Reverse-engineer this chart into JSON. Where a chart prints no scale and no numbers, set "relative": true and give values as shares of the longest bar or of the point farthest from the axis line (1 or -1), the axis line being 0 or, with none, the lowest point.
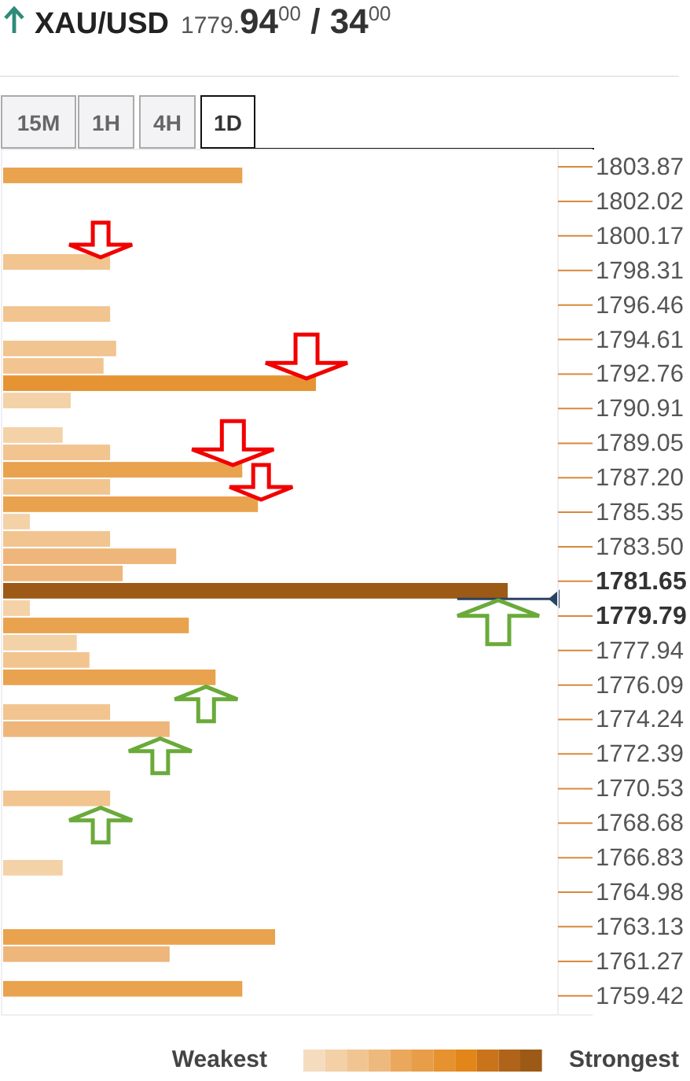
{
  "chart_data": {
    "type": "bar",
    "orientation": "horizontal",
    "relative": true,
    "title": "XAU/USD",
    "subtitle": "1779.94$^{00}$ / 34$^{00}$",
    "annotations": [
      "15M",
      "1H",
      "4H",
      "1D",
      "Weakest",
      "Strongest"
    ],
    "x": [
      1803.41,
      1798.77,
      1795.98,
      1794.13,
      1793.2,
      1792.27,
      1791.34,
      1789.49,
      1788.56,
      1787.63,
      1786.71,
      1785.78,
      1784.85,
      1783.92,
      1782.99,
      1782.07,
      1781.14,
      1780.21,
      1779.28,
      1778.36,
      1777.43,
      1776.5,
      1774.64,
      1773.72,
      1770.01,
      1766.29,
      1762.58,
      1761.66,
      1759.8
    ],
    "values": [
      0.474,
      0.212,
      0.212,
      0.224,
      0.199,
      0.62,
      0.134,
      0.118,
      0.212,
      0.474,
      0.212,
      0.505,
      0.053,
      0.212,
      0.343,
      0.237,
      1,
      0.053,
      0.368,
      0.146,
      0.171,
      0.421,
      0.212,
      0.33,
      0.212,
      0.118,
      0.539,
      0.33,
      0.474
    ],
    "colors": [
      "#e9a24e",
      "#f1c490",
      "#f1c490",
      "#f1c490",
      "#f1c490",
      "#e69433",
      "#f4d2a8",
      "#f4d2a8",
      "#f1c490",
      "#e9a24e",
      "#f1c490",
      "#e9a24e",
      "#f4d2a8",
      "#f1c490",
      "#eeb67a",
      "#eeb67a",
      "#9c5a16",
      "#f4d2a8",
      "#e9a24e",
      "#f4d2a8",
      "#f1c490",
      "#e9a24e",
      "#f1c490",
      "#eeb67a",
      "#f1c490",
      "#f4d2a8",
      "#e9a24e",
      "#eeb67a",
      "#e9a24e"
    ],
    "ylim": [
      1758.4,
      1804.8
    ],
    "yticks": [
      1803.87,
      1802.02,
      1800.17,
      1798.31,
      1796.46,
      1794.61,
      1792.76,
      1790.91,
      1789.05,
      {
        "value": 1787.2,
        "label": "1787.20"
      },
      1785.35,
      {
        "value": 1783.5,
        "label": "1783.50"
      },
      1781.65,
      1779.79,
      1777.94,
      1776.09,
      1774.24,
      1772.39,
      1770.53,
      1768.68,
      1766.83,
      1764.98,
      1763.13,
      1761.27,
      1759.42
    ],
    "ref_lines": [
      {
        "axis": "y",
        "value": 1780.7,
        "color": "#2b4263"
      }
    ]
  }
}
